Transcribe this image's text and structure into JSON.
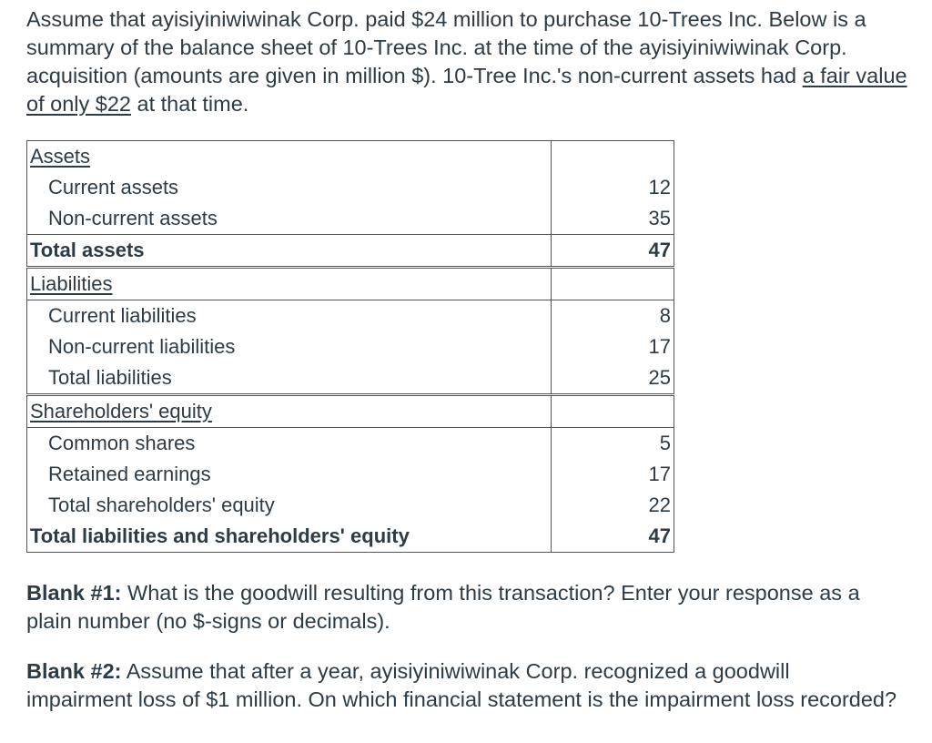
{
  "intro": {
    "text_before": "Assume that ayisiyiniwiwinak Corp. paid $24 million to purchase 10-Trees Inc. Below is a summary of the balance sheet of 10-Trees Inc. at the time of the ayisiyiniwiwinak Corp. acquisition (amounts are given in million $). 10-Tree Inc.'s non-current assets had ",
    "underlined": "a fair value of only $22",
    "text_after": " at that time."
  },
  "balance_sheet": {
    "assets_heading": "Assets",
    "current_assets": {
      "label": "Current assets",
      "value": "12"
    },
    "noncurrent_assets": {
      "label": "Non-current assets",
      "value": "35"
    },
    "total_assets": {
      "label": "Total assets",
      "value": "47"
    },
    "liabilities_heading": "Liabilities",
    "current_liabilities": {
      "label": "Current liabilities",
      "value": "8"
    },
    "noncurrent_liabilities": {
      "label": "Non-current liabilities",
      "value": "17"
    },
    "total_liabilities": {
      "label": "Total liabilities",
      "value": "25"
    },
    "equity_heading": "Shareholders' equity",
    "common_shares": {
      "label": "Common shares",
      "value": "5"
    },
    "retained_earnings": {
      "label": "Retained earnings",
      "value": "17"
    },
    "total_equity": {
      "label": "Total shareholders' equity",
      "value": "22"
    },
    "total_liab_equity": {
      "label": "Total liabilities and shareholders' equity",
      "value": "47"
    }
  },
  "questions": {
    "q1_label": "Blank #1:",
    "q1_text": " What is the goodwill resulting from this transaction? Enter your response as a plain number (no $-signs or decimals).",
    "q2_label": "Blank #2:",
    "q2_text": " Assume that after a year, ayisiyiniwiwinak Corp. recognized a goodwill impairment loss of $1 million. On which financial statement is the impairment loss recorded?"
  }
}
